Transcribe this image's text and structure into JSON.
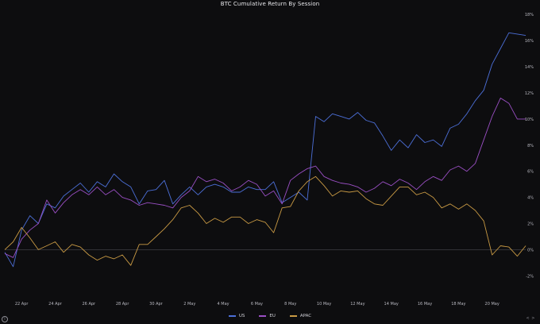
{
  "chart_data": {
    "type": "line",
    "title": "BTC Cumulative Return By Session",
    "x_ticks": [
      "22 Apr",
      "24 Apr",
      "26 Apr",
      "28 Apr",
      "30 Apr",
      "2 May",
      "4 May",
      "6 May",
      "8 May",
      "10 May",
      "12 May",
      "14 May",
      "16 May",
      "18 May",
      "20 May"
    ],
    "x_range": [
      "2024-04-21",
      "2024-05-22"
    ],
    "y_ticks": [
      "18%",
      "16%",
      "14%",
      "12%",
      "10%",
      "8%",
      "6%",
      "4%",
      "2%",
      "0%",
      "-2%"
    ],
    "y_tick_values": [
      18,
      16,
      14,
      12,
      10,
      8,
      6,
      4,
      2,
      0,
      -2
    ],
    "ylim": [
      -3.5,
      18.5
    ],
    "grid": false,
    "zero_line": true,
    "legend_position": "bottom",
    "series": [
      {
        "name": "US",
        "color": "#4c6fd8",
        "points": [
          [
            "2024-04-21",
            -0.2
          ],
          [
            "2024-04-21T12:00",
            -1.3
          ],
          [
            "2024-04-22",
            1.5
          ],
          [
            "2024-04-22T12:00",
            2.6
          ],
          [
            "2024-04-23",
            2.0
          ],
          [
            "2024-04-23T12:00",
            3.5
          ],
          [
            "2024-04-24",
            3.2
          ],
          [
            "2024-04-24T12:00",
            4.1
          ],
          [
            "2024-04-25",
            4.6
          ],
          [
            "2024-04-25T12:00",
            5.1
          ],
          [
            "2024-04-26",
            4.4
          ],
          [
            "2024-04-26T12:00",
            5.2
          ],
          [
            "2024-04-27",
            4.8
          ],
          [
            "2024-04-27T12:00",
            5.8
          ],
          [
            "2024-04-28",
            5.2
          ],
          [
            "2024-04-28T12:00",
            4.8
          ],
          [
            "2024-04-29",
            3.5
          ],
          [
            "2024-04-29T12:00",
            4.5
          ],
          [
            "2024-04-30",
            4.6
          ],
          [
            "2024-04-30T12:00",
            5.3
          ],
          [
            "2024-05-01",
            3.5
          ],
          [
            "2024-05-01T12:00",
            4.2
          ],
          [
            "2024-05-02",
            4.8
          ],
          [
            "2024-05-02T12:00",
            4.2
          ],
          [
            "2024-05-03",
            4.8
          ],
          [
            "2024-05-03T12:00",
            5.0
          ],
          [
            "2024-05-04",
            4.8
          ],
          [
            "2024-05-04T12:00",
            4.4
          ],
          [
            "2024-05-05",
            4.4
          ],
          [
            "2024-05-05T12:00",
            4.8
          ],
          [
            "2024-05-06",
            4.6
          ],
          [
            "2024-05-06T12:00",
            4.6
          ],
          [
            "2024-05-07",
            5.2
          ],
          [
            "2024-05-07T12:00",
            3.6
          ],
          [
            "2024-05-08",
            4.0
          ],
          [
            "2024-05-08T12:00",
            4.4
          ],
          [
            "2024-05-09",
            3.8
          ],
          [
            "2024-05-09T12:00",
            10.2
          ],
          [
            "2024-05-10",
            9.8
          ],
          [
            "2024-05-10T12:00",
            10.4
          ],
          [
            "2024-05-11",
            10.2
          ],
          [
            "2024-05-11T12:00",
            10.0
          ],
          [
            "2024-05-12",
            10.5
          ],
          [
            "2024-05-12T12:00",
            9.9
          ],
          [
            "2024-05-13",
            9.7
          ],
          [
            "2024-05-13T12:00",
            8.7
          ],
          [
            "2024-05-14",
            7.6
          ],
          [
            "2024-05-14T12:00",
            8.4
          ],
          [
            "2024-05-15",
            7.8
          ],
          [
            "2024-05-15T12:00",
            8.8
          ],
          [
            "2024-05-16",
            8.2
          ],
          [
            "2024-05-16T12:00",
            8.4
          ],
          [
            "2024-05-17",
            7.9
          ],
          [
            "2024-05-17T12:00",
            9.3
          ],
          [
            "2024-05-18",
            9.6
          ],
          [
            "2024-05-18T12:00",
            10.4
          ],
          [
            "2024-05-19",
            11.4
          ],
          [
            "2024-05-19T12:00",
            12.2
          ],
          [
            "2024-05-20",
            14.2
          ],
          [
            "2024-05-20T12:00",
            15.4
          ],
          [
            "2024-05-21",
            16.6
          ],
          [
            "2024-05-21T12:00",
            16.5
          ],
          [
            "2024-05-22",
            16.4
          ]
        ]
      },
      {
        "name": "EU",
        "color": "#9a4fc4",
        "points": [
          [
            "2024-04-21",
            -0.3
          ],
          [
            "2024-04-21T12:00",
            -0.6
          ],
          [
            "2024-04-22",
            0.8
          ],
          [
            "2024-04-22T12:00",
            1.5
          ],
          [
            "2024-04-23",
            2.0
          ],
          [
            "2024-04-23T12:00",
            3.8
          ],
          [
            "2024-04-24",
            2.8
          ],
          [
            "2024-04-24T12:00",
            3.6
          ],
          [
            "2024-04-25",
            4.2
          ],
          [
            "2024-04-25T12:00",
            4.6
          ],
          [
            "2024-04-26",
            4.2
          ],
          [
            "2024-04-26T12:00",
            4.8
          ],
          [
            "2024-04-27",
            4.2
          ],
          [
            "2024-04-27T12:00",
            4.6
          ],
          [
            "2024-04-28",
            4.0
          ],
          [
            "2024-04-28T12:00",
            3.8
          ],
          [
            "2024-04-29",
            3.4
          ],
          [
            "2024-04-29T12:00",
            3.6
          ],
          [
            "2024-04-30",
            3.5
          ],
          [
            "2024-04-30T12:00",
            3.4
          ],
          [
            "2024-05-01",
            3.2
          ],
          [
            "2024-05-01T12:00",
            4.0
          ],
          [
            "2024-05-02",
            4.5
          ],
          [
            "2024-05-02T12:00",
            5.6
          ],
          [
            "2024-05-03",
            5.2
          ],
          [
            "2024-05-03T12:00",
            5.4
          ],
          [
            "2024-05-04",
            5.1
          ],
          [
            "2024-05-04T12:00",
            4.5
          ],
          [
            "2024-05-05",
            4.8
          ],
          [
            "2024-05-05T12:00",
            5.3
          ],
          [
            "2024-05-06",
            5.0
          ],
          [
            "2024-05-06T12:00",
            4.1
          ],
          [
            "2024-05-07",
            4.5
          ],
          [
            "2024-05-07T12:00",
            3.5
          ],
          [
            "2024-05-08",
            5.3
          ],
          [
            "2024-05-08T12:00",
            5.8
          ],
          [
            "2024-05-09",
            6.2
          ],
          [
            "2024-05-09T12:00",
            6.4
          ],
          [
            "2024-05-10",
            5.6
          ],
          [
            "2024-05-10T12:00",
            5.3
          ],
          [
            "2024-05-11",
            5.1
          ],
          [
            "2024-05-11T12:00",
            5.0
          ],
          [
            "2024-05-12",
            4.8
          ],
          [
            "2024-05-12T12:00",
            4.4
          ],
          [
            "2024-05-13",
            4.7
          ],
          [
            "2024-05-13T12:00",
            5.2
          ],
          [
            "2024-05-14",
            4.9
          ],
          [
            "2024-05-14T12:00",
            5.4
          ],
          [
            "2024-05-15",
            5.1
          ],
          [
            "2024-05-15T12:00",
            4.6
          ],
          [
            "2024-05-16",
            5.2
          ],
          [
            "2024-05-16T12:00",
            5.6
          ],
          [
            "2024-05-17",
            5.3
          ],
          [
            "2024-05-17T12:00",
            6.1
          ],
          [
            "2024-05-18",
            6.4
          ],
          [
            "2024-05-18T12:00",
            6.0
          ],
          [
            "2024-05-19",
            6.6
          ],
          [
            "2024-05-19T12:00",
            8.4
          ],
          [
            "2024-05-20",
            10.2
          ],
          [
            "2024-05-20T12:00",
            11.6
          ],
          [
            "2024-05-21",
            11.2
          ],
          [
            "2024-05-21T12:00",
            10.0
          ],
          [
            "2024-05-22",
            10.0
          ]
        ]
      },
      {
        "name": "APAC",
        "color": "#c99a44",
        "points": [
          [
            "2024-04-21",
            0.0
          ],
          [
            "2024-04-21T12:00",
            0.6
          ],
          [
            "2024-04-22",
            1.7
          ],
          [
            "2024-04-22T12:00",
            0.9
          ],
          [
            "2024-04-23",
            0.0
          ],
          [
            "2024-04-23T12:00",
            0.3
          ],
          [
            "2024-04-24",
            0.6
          ],
          [
            "2024-04-24T12:00",
            -0.2
          ],
          [
            "2024-04-25",
            0.4
          ],
          [
            "2024-04-25T12:00",
            0.2
          ],
          [
            "2024-04-26",
            -0.4
          ],
          [
            "2024-04-26T12:00",
            -0.8
          ],
          [
            "2024-04-27",
            -0.5
          ],
          [
            "2024-04-27T12:00",
            -0.7
          ],
          [
            "2024-04-28",
            -0.4
          ],
          [
            "2024-04-28T12:00",
            -1.2
          ],
          [
            "2024-04-29",
            0.4
          ],
          [
            "2024-04-29T12:00",
            0.4
          ],
          [
            "2024-04-30",
            1.0
          ],
          [
            "2024-04-30T12:00",
            1.6
          ],
          [
            "2024-05-01",
            2.3
          ],
          [
            "2024-05-01T12:00",
            3.2
          ],
          [
            "2024-05-02",
            3.4
          ],
          [
            "2024-05-02T12:00",
            2.8
          ],
          [
            "2024-05-03",
            2.0
          ],
          [
            "2024-05-03T12:00",
            2.4
          ],
          [
            "2024-05-04",
            2.1
          ],
          [
            "2024-05-04T12:00",
            2.5
          ],
          [
            "2024-05-05",
            2.5
          ],
          [
            "2024-05-05T12:00",
            2.0
          ],
          [
            "2024-05-06",
            2.3
          ],
          [
            "2024-05-06T12:00",
            2.1
          ],
          [
            "2024-05-07",
            1.3
          ],
          [
            "2024-05-07T12:00",
            3.2
          ],
          [
            "2024-05-08",
            3.3
          ],
          [
            "2024-05-08T12:00",
            4.5
          ],
          [
            "2024-05-09",
            5.2
          ],
          [
            "2024-05-09T12:00",
            5.6
          ],
          [
            "2024-05-10",
            4.9
          ],
          [
            "2024-05-10T12:00",
            4.1
          ],
          [
            "2024-05-11",
            4.5
          ],
          [
            "2024-05-11T12:00",
            4.4
          ],
          [
            "2024-05-12",
            4.5
          ],
          [
            "2024-05-12T12:00",
            3.9
          ],
          [
            "2024-05-13",
            3.5
          ],
          [
            "2024-05-13T12:00",
            3.4
          ],
          [
            "2024-05-14",
            4.1
          ],
          [
            "2024-05-14T12:00",
            4.8
          ],
          [
            "2024-05-15",
            4.8
          ],
          [
            "2024-05-15T12:00",
            4.2
          ],
          [
            "2024-05-16",
            4.4
          ],
          [
            "2024-05-16T12:00",
            4.0
          ],
          [
            "2024-05-17",
            3.2
          ],
          [
            "2024-05-17T12:00",
            3.5
          ],
          [
            "2024-05-18",
            3.1
          ],
          [
            "2024-05-18T12:00",
            3.5
          ],
          [
            "2024-05-19",
            3.0
          ],
          [
            "2024-05-19T12:00",
            2.2
          ],
          [
            "2024-05-20",
            -0.4
          ],
          [
            "2024-05-20T12:00",
            0.3
          ],
          [
            "2024-05-21",
            0.2
          ],
          [
            "2024-05-21T12:00",
            -0.5
          ],
          [
            "2024-05-22",
            0.3
          ]
        ]
      }
    ]
  },
  "footer": {
    "info_icon": "info-icon",
    "info_glyph": "i",
    "nav_glyph": "< >"
  }
}
